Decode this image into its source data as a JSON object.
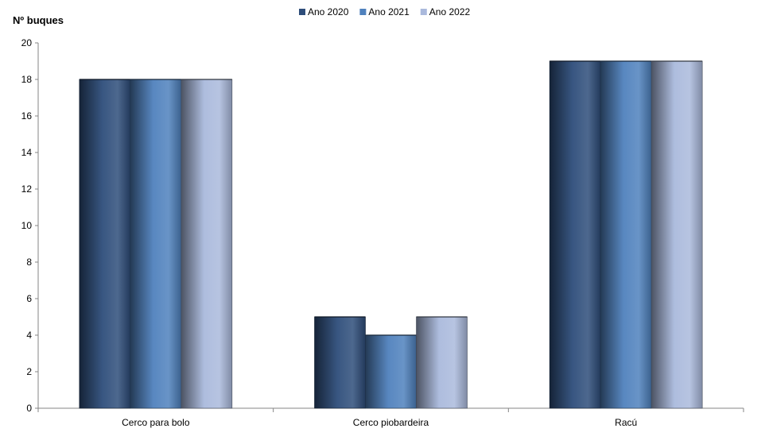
{
  "chart_data": {
    "type": "bar",
    "title": "",
    "xlabel": "",
    "ylabel": "Nº buques",
    "categories": [
      "Cerco para bolo",
      "Cerco piobardeira",
      "Racú"
    ],
    "series": [
      {
        "name": "Ano 2020",
        "values": [
          18,
          5,
          19
        ],
        "color": "#2e4d7a"
      },
      {
        "name": "Ano 2021",
        "values": [
          18,
          4,
          19
        ],
        "color": "#4f81bd"
      },
      {
        "name": "Ano 2022",
        "values": [
          18,
          5,
          19
        ],
        "color": "#aab9dc"
      }
    ],
    "ylim": [
      0,
      20
    ],
    "yticks": [
      0,
      2,
      4,
      6,
      8,
      10,
      12,
      14,
      16,
      18,
      20
    ],
    "grid": false,
    "legend_position": "top-center"
  }
}
